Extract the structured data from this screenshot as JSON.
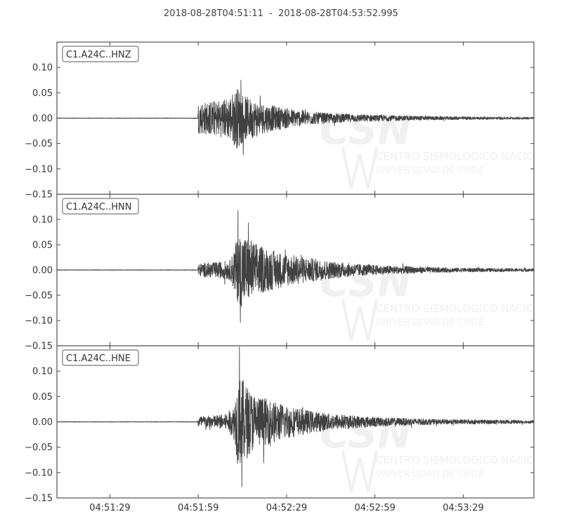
{
  "figure": {
    "title": "2018-08-28T04:51:11  -  2018-08-28T04:53:52.995"
  },
  "watermark": {
    "logo_text": "CSN",
    "line1": "CENTRO SISMOLÓGICO NACIONAL",
    "line2": "UNIVERSIDAD DE CHILE"
  },
  "colors": {
    "trace": "#404040",
    "axes": "#444444",
    "label_box": "#777777",
    "watermark": "#f0f0f0"
  },
  "chart_data": {
    "type": "line",
    "title": "2018-08-28T04:51:11  -  2018-08-28T04:53:52.995",
    "x_start": "2018-08-28T04:51:11",
    "x_end": "2018-08-28T04:53:52.995",
    "xlim_seconds_after_start": [
      0,
      161.995
    ],
    "xticks": [
      "04:51:29",
      "04:51:59",
      "04:52:29",
      "04:52:59",
      "04:53:29"
    ],
    "xtick_seconds_after_start": [
      18,
      48,
      78,
      108,
      138
    ],
    "ylim": [
      -0.15,
      0.15
    ],
    "yticks": [
      0.1,
      0.05,
      0.0,
      -0.05,
      -0.1,
      -0.15
    ],
    "ytick_labels": [
      "0.10",
      "0.05",
      "0.00",
      "−0.05",
      "−0.10",
      "−0.15"
    ],
    "grid": false,
    "panels": [
      {
        "label": "C1.A24C..HNZ",
        "onset_s": 47.9,
        "envelope_s": [
          0,
          47.8,
          48.0,
          50,
          54,
          58,
          61.5,
          63.5,
          66,
          70,
          74,
          80,
          86,
          92,
          100,
          110,
          120,
          130,
          140,
          150,
          162
        ],
        "envelope_amp": [
          0.001,
          0.001,
          0.03,
          0.032,
          0.035,
          0.04,
          0.062,
          0.045,
          0.038,
          0.03,
          0.024,
          0.018,
          0.013,
          0.01,
          0.008,
          0.006,
          0.0045,
          0.0035,
          0.003,
          0.0025,
          0.002
        ],
        "peak_positive": 0.075,
        "peak_negative": -0.072,
        "peak_time_s": 62.5
      },
      {
        "label": "C1.A24C..HNN",
        "onset_s": 47.9,
        "envelope_s": [
          0,
          47.8,
          48.0,
          50,
          55,
          59,
          61,
          63,
          65,
          69,
          74,
          80,
          86,
          92,
          100,
          110,
          120,
          130,
          140,
          150,
          162
        ],
        "envelope_amp": [
          0.001,
          0.001,
          0.012,
          0.014,
          0.016,
          0.02,
          0.06,
          0.075,
          0.065,
          0.048,
          0.038,
          0.03,
          0.024,
          0.018,
          0.013,
          0.009,
          0.007,
          0.005,
          0.004,
          0.0035,
          0.003
        ],
        "peak_positive": 0.118,
        "peak_negative": -0.104,
        "peak_time_s": 61.5
      },
      {
        "label": "C1.A24C..HNE",
        "onset_s": 47.9,
        "envelope_s": [
          0,
          47.8,
          48.0,
          52,
          57,
          60,
          61.5,
          63,
          66,
          70,
          75,
          80,
          86,
          92,
          100,
          110,
          120,
          130,
          140,
          150,
          162
        ],
        "envelope_amp": [
          0.001,
          0.001,
          0.012,
          0.012,
          0.015,
          0.03,
          0.09,
          0.085,
          0.06,
          0.048,
          0.038,
          0.03,
          0.022,
          0.017,
          0.013,
          0.009,
          0.007,
          0.005,
          0.0045,
          0.004,
          0.003
        ],
        "peak_positive": 0.148,
        "peak_negative": -0.128,
        "peak_time_s": 62.0
      }
    ]
  }
}
